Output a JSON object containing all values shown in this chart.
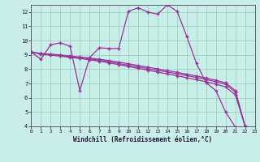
{
  "xlabel": "Windchill (Refroidissement éolien,°C)",
  "background_color": "#c8eee8",
  "line_color": "#993399",
  "grid_color": "#99ccbb",
  "xlim": [
    0,
    23
  ],
  "ylim": [
    4,
    12.5
  ],
  "xticks": [
    0,
    1,
    2,
    3,
    4,
    5,
    6,
    7,
    8,
    9,
    10,
    11,
    12,
    13,
    14,
    15,
    16,
    17,
    18,
    19,
    20,
    21,
    22,
    23
  ],
  "yticks": [
    4,
    5,
    6,
    7,
    8,
    9,
    10,
    11,
    12
  ],
  "series": {
    "main": [
      9.2,
      8.7,
      9.7,
      9.85,
      9.6,
      6.5,
      8.8,
      9.5,
      9.45,
      9.45,
      12.05,
      12.3,
      12.0,
      11.85,
      12.5,
      12.05,
      10.3,
      8.4,
      7.05,
      6.5,
      5.0,
      3.95,
      3.9
    ],
    "line1": [
      9.2,
      9.1,
      9.05,
      9.0,
      8.92,
      8.85,
      8.78,
      8.7,
      8.6,
      8.5,
      8.38,
      8.26,
      8.14,
      8.02,
      7.9,
      7.78,
      7.65,
      7.52,
      7.38,
      7.22,
      7.05,
      6.5,
      4.0
    ],
    "line2": [
      9.2,
      9.08,
      9.02,
      8.96,
      8.88,
      8.8,
      8.72,
      8.63,
      8.52,
      8.4,
      8.28,
      8.16,
      8.04,
      7.92,
      7.8,
      7.68,
      7.55,
      7.42,
      7.28,
      7.12,
      6.94,
      6.4,
      4.0
    ],
    "line3": [
      9.2,
      9.05,
      8.98,
      8.91,
      8.83,
      8.75,
      8.66,
      8.56,
      8.44,
      8.32,
      8.19,
      8.06,
      7.93,
      7.8,
      7.67,
      7.54,
      7.4,
      7.26,
      7.12,
      6.95,
      6.76,
      6.2,
      4.0
    ]
  }
}
